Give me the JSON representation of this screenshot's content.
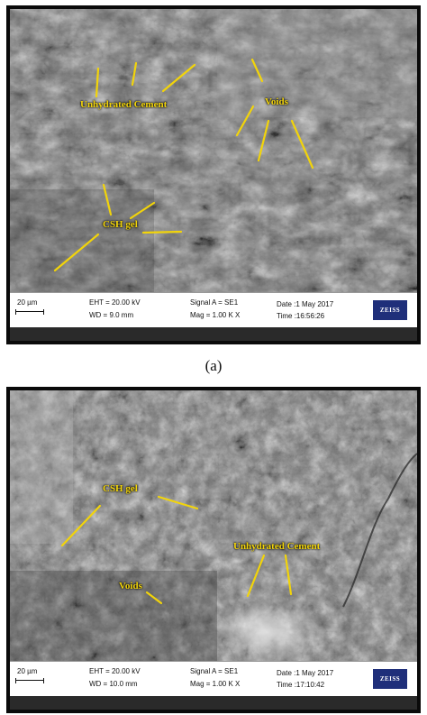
{
  "panels": [
    {
      "labels": {
        "unhydrated": "Unhydrated Cement",
        "voids": "Voids",
        "csh": "CSH gel"
      },
      "databar": {
        "scale": "20 µm",
        "eht": "EHT = 20.00 kV",
        "wd": "WD =  9.0 mm",
        "signal": "Signal A = SE1",
        "mag": "Mag =    1.00 K X",
        "date": "Date :1 May 2017",
        "time": "Time :16:56:26",
        "logo": "ZEISS"
      }
    },
    {
      "labels": {
        "csh": "CSH gel",
        "unhydrated": "Unhydrated Cement",
        "voids": "Voids"
      },
      "databar": {
        "scale": "20 µm",
        "eht": "EHT = 20.00 kV",
        "wd": "WD = 10.0 mm",
        "signal": "Signal A = SE1",
        "mag": "Mag =    1.00 K X",
        "date": "Date :1 May 2017",
        "time": "Time :17:10:42",
        "logo": "ZEISS"
      }
    }
  ],
  "caption_a": "(a)",
  "colors": {
    "annotation": "#f2d40a",
    "logo_bg": "#1f2f7a"
  }
}
